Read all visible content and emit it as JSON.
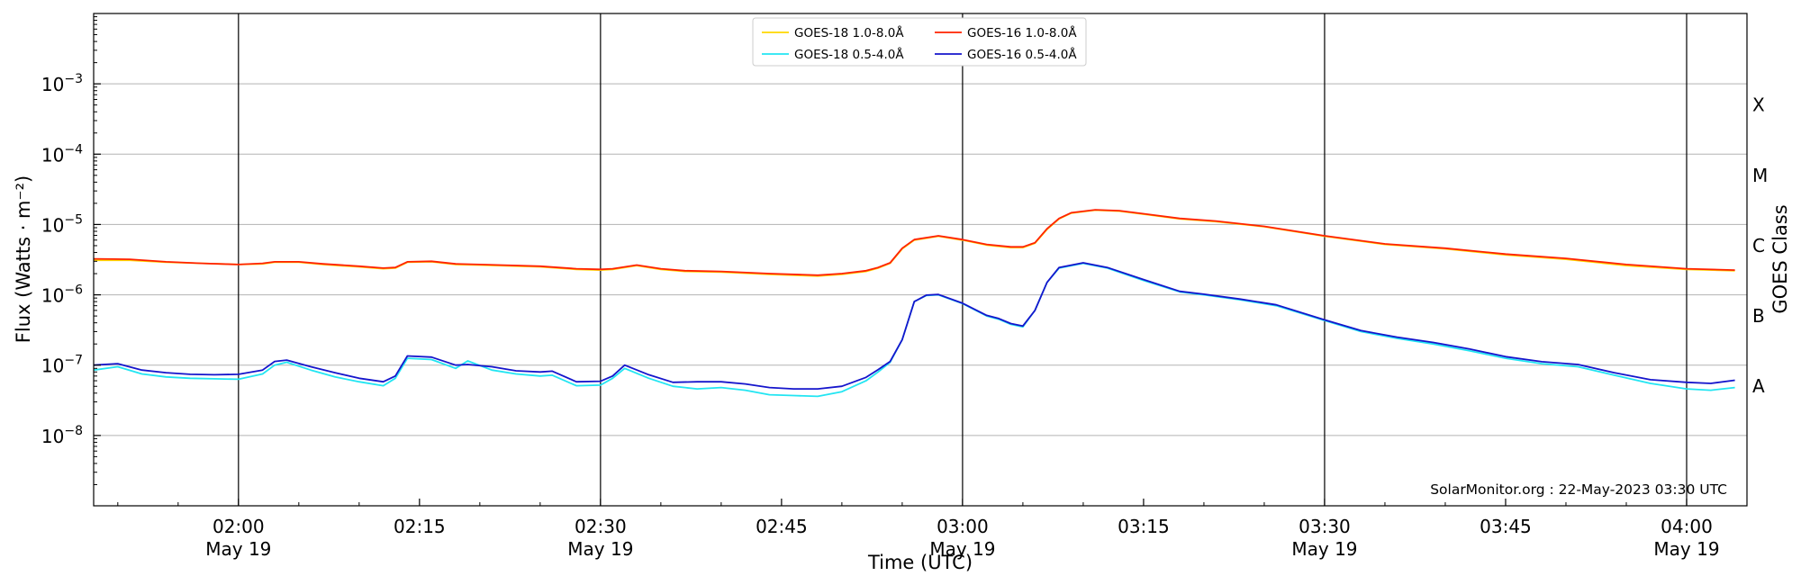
{
  "chart_data": {
    "type": "line",
    "xlabel": "Time (UTC)",
    "ylabel": "Flux (Watts · m⁻²)",
    "right_label": "GOES Class",
    "y_scale": "log",
    "ylim": [
      1e-09,
      0.01
    ],
    "xlim": [
      "2023-05-19 01:48",
      "2023-05-19 04:05"
    ],
    "grid": "horizontal at decades; vertical lines at half-hours",
    "legend_position": "top-center",
    "credit": "SolarMonitor.org : 22-May-2023 03:30 UTC",
    "y_ticks": [
      {
        "value": 1e-08,
        "label": "10",
        "exp": "−8"
      },
      {
        "value": 1e-07,
        "label": "10",
        "exp": "−7"
      },
      {
        "value": 1e-06,
        "label": "10",
        "exp": "−6"
      },
      {
        "value": 1e-05,
        "label": "10",
        "exp": "−5"
      },
      {
        "value": 0.0001,
        "label": "10",
        "exp": "−4"
      },
      {
        "value": 0.001,
        "label": "10",
        "exp": "−3"
      }
    ],
    "x_ticks": [
      {
        "time": "02:00",
        "label": "02:00",
        "date": "May 19"
      },
      {
        "time": "02:15",
        "label": "02:15",
        "date": ""
      },
      {
        "time": "02:30",
        "label": "02:30",
        "date": "May 19"
      },
      {
        "time": "02:45",
        "label": "02:45",
        "date": ""
      },
      {
        "time": "03:00",
        "label": "03:00",
        "date": "May 19"
      },
      {
        "time": "03:15",
        "label": "03:15",
        "date": ""
      },
      {
        "time": "03:30",
        "label": "03:30",
        "date": "May 19"
      },
      {
        "time": "03:45",
        "label": "03:45",
        "date": ""
      },
      {
        "time": "04:00",
        "label": "04:00",
        "date": "May 19"
      }
    ],
    "vlines": [
      "02:00",
      "02:30",
      "03:00",
      "03:30",
      "04:00"
    ],
    "goes_classes": [
      {
        "label": "A",
        "value": 5e-08
      },
      {
        "label": "B",
        "value": 5e-07
      },
      {
        "label": "C",
        "value": 5e-06
      },
      {
        "label": "M",
        "value": 5e-05
      },
      {
        "label": "X",
        "value": 0.0005
      }
    ],
    "series": [
      {
        "name": "GOES-18 1.0-8.0Å",
        "color": "#ffd700",
        "points": [
          [
            "01:48",
            3.1e-06
          ],
          [
            "01:51",
            3.1e-06
          ],
          [
            "01:54",
            2.9e-06
          ],
          [
            "01:57",
            2.8e-06
          ],
          [
            "02:00",
            2.7e-06
          ],
          [
            "02:02",
            2.75e-06
          ],
          [
            "02:03",
            2.9e-06
          ],
          [
            "02:05",
            2.9e-06
          ],
          [
            "02:07",
            2.7e-06
          ],
          [
            "02:10",
            2.5e-06
          ],
          [
            "02:12",
            2.35e-06
          ],
          [
            "02:13",
            2.4e-06
          ],
          [
            "02:14",
            2.9e-06
          ],
          [
            "02:16",
            2.95e-06
          ],
          [
            "02:18",
            2.7e-06
          ],
          [
            "02:20",
            2.65e-06
          ],
          [
            "02:25",
            2.5e-06
          ],
          [
            "02:28",
            2.3e-06
          ],
          [
            "02:30",
            2.25e-06
          ],
          [
            "02:31",
            2.3e-06
          ],
          [
            "02:33",
            2.6e-06
          ],
          [
            "02:35",
            2.3e-06
          ],
          [
            "02:37",
            2.15e-06
          ],
          [
            "02:40",
            2.1e-06
          ],
          [
            "02:44",
            1.95e-06
          ],
          [
            "02:48",
            1.85e-06
          ],
          [
            "02:50",
            1.95e-06
          ],
          [
            "02:52",
            2.15e-06
          ],
          [
            "02:53",
            2.4e-06
          ],
          [
            "02:54",
            2.8e-06
          ],
          [
            "02:55",
            4.5e-06
          ],
          [
            "02:56",
            6e-06
          ],
          [
            "02:58",
            6.8e-06
          ],
          [
            "03:00",
            6e-06
          ],
          [
            "03:02",
            5.1e-06
          ],
          [
            "03:04",
            4.7e-06
          ],
          [
            "03:05",
            4.7e-06
          ],
          [
            "03:06",
            5.4e-06
          ],
          [
            "03:07",
            8.5e-06
          ],
          [
            "03:08",
            1.2e-05
          ],
          [
            "03:09",
            1.45e-05
          ],
          [
            "03:11",
            1.6e-05
          ],
          [
            "03:13",
            1.55e-05
          ],
          [
            "03:15",
            1.4e-05
          ],
          [
            "03:18",
            1.2e-05
          ],
          [
            "03:21",
            1.1e-05
          ],
          [
            "03:25",
            9.3e-06
          ],
          [
            "03:30",
            6.8e-06
          ],
          [
            "03:35",
            5.2e-06
          ],
          [
            "03:40",
            4.5e-06
          ],
          [
            "03:45",
            3.7e-06
          ],
          [
            "03:50",
            3.2e-06
          ],
          [
            "03:55",
            2.6e-06
          ],
          [
            "04:00",
            2.3e-06
          ],
          [
            "04:04",
            2.2e-06
          ]
        ]
      },
      {
        "name": "GOES-18 0.5-4.0Å",
        "color": "#22e5f2",
        "points": [
          [
            "01:48",
            8.5e-08
          ],
          [
            "01:50",
            9.5e-08
          ],
          [
            "01:52",
            7.5e-08
          ],
          [
            "01:54",
            6.8e-08
          ],
          [
            "01:56",
            6.5e-08
          ],
          [
            "01:58",
            6.4e-08
          ],
          [
            "02:00",
            6.3e-08
          ],
          [
            "02:02",
            7.5e-08
          ],
          [
            "02:03",
            1e-07
          ],
          [
            "02:04",
            1.1e-07
          ],
          [
            "02:06",
            8.5e-08
          ],
          [
            "02:08",
            6.8e-08
          ],
          [
            "02:10",
            5.8e-08
          ],
          [
            "02:12",
            5.1e-08
          ],
          [
            "02:13",
            6.5e-08
          ],
          [
            "02:14",
            1.25e-07
          ],
          [
            "02:16",
            1.2e-07
          ],
          [
            "02:18",
            9e-08
          ],
          [
            "02:19",
            1.15e-07
          ],
          [
            "02:21",
            8.5e-08
          ],
          [
            "02:23",
            7.5e-08
          ],
          [
            "02:25",
            7e-08
          ],
          [
            "02:26",
            7.2e-08
          ],
          [
            "02:28",
            5.1e-08
          ],
          [
            "02:30",
            5.2e-08
          ],
          [
            "02:31",
            6.5e-08
          ],
          [
            "02:32",
            9e-08
          ],
          [
            "02:34",
            6.5e-08
          ],
          [
            "02:36",
            5e-08
          ],
          [
            "02:38",
            4.6e-08
          ],
          [
            "02:40",
            4.8e-08
          ],
          [
            "02:42",
            4.4e-08
          ],
          [
            "02:44",
            3.8e-08
          ],
          [
            "02:46",
            3.7e-08
          ],
          [
            "02:48",
            3.6e-08
          ],
          [
            "02:50",
            4.2e-08
          ],
          [
            "02:52",
            6e-08
          ],
          [
            "02:53",
            8e-08
          ],
          [
            "02:54",
            1.1e-07
          ],
          [
            "02:55",
            2.3e-07
          ],
          [
            "02:56",
            8e-07
          ],
          [
            "02:57",
            9.8e-07
          ],
          [
            "02:58",
            1e-06
          ],
          [
            "03:00",
            7.5e-07
          ],
          [
            "03:02",
            5e-07
          ],
          [
            "03:03",
            4.5e-07
          ],
          [
            "03:04",
            3.8e-07
          ],
          [
            "03:05",
            3.5e-07
          ],
          [
            "03:06",
            6e-07
          ],
          [
            "03:07",
            1.5e-06
          ],
          [
            "03:08",
            2.4e-06
          ],
          [
            "03:10",
            2.8e-06
          ],
          [
            "03:12",
            2.4e-06
          ],
          [
            "03:15",
            1.6e-06
          ],
          [
            "03:18",
            1.1e-06
          ],
          [
            "03:20",
            1e-06
          ],
          [
            "03:23",
            8.5e-07
          ],
          [
            "03:26",
            7e-07
          ],
          [
            "03:30",
            4.3e-07
          ],
          [
            "03:33",
            3e-07
          ],
          [
            "03:36",
            2.4e-07
          ],
          [
            "03:39",
            2e-07
          ],
          [
            "03:42",
            1.6e-07
          ],
          [
            "03:45",
            1.25e-07
          ],
          [
            "03:48",
            1.05e-07
          ],
          [
            "03:51",
            9.5e-08
          ],
          [
            "03:54",
            7.2e-08
          ],
          [
            "03:57",
            5.5e-08
          ],
          [
            "04:00",
            4.6e-08
          ],
          [
            "04:02",
            4.4e-08
          ],
          [
            "04:04",
            4.8e-08
          ]
        ]
      },
      {
        "name": "GOES-16 1.0-8.0Å",
        "color": "#ff2200",
        "points": [
          [
            "01:48",
            3.25e-06
          ],
          [
            "01:51",
            3.2e-06
          ],
          [
            "01:54",
            2.95e-06
          ],
          [
            "01:57",
            2.8e-06
          ],
          [
            "02:00",
            2.7e-06
          ],
          [
            "02:02",
            2.8e-06
          ],
          [
            "02:03",
            2.95e-06
          ],
          [
            "02:05",
            2.95e-06
          ],
          [
            "02:07",
            2.75e-06
          ],
          [
            "02:10",
            2.55e-06
          ],
          [
            "02:12",
            2.4e-06
          ],
          [
            "02:13",
            2.45e-06
          ],
          [
            "02:14",
            2.95e-06
          ],
          [
            "02:16",
            3e-06
          ],
          [
            "02:18",
            2.75e-06
          ],
          [
            "02:20",
            2.7e-06
          ],
          [
            "02:25",
            2.55e-06
          ],
          [
            "02:28",
            2.35e-06
          ],
          [
            "02:30",
            2.3e-06
          ],
          [
            "02:31",
            2.35e-06
          ],
          [
            "02:33",
            2.65e-06
          ],
          [
            "02:35",
            2.35e-06
          ],
          [
            "02:37",
            2.2e-06
          ],
          [
            "02:40",
            2.15e-06
          ],
          [
            "02:44",
            2e-06
          ],
          [
            "02:48",
            1.9e-06
          ],
          [
            "02:50",
            2e-06
          ],
          [
            "02:52",
            2.2e-06
          ],
          [
            "02:53",
            2.45e-06
          ],
          [
            "02:54",
            2.85e-06
          ],
          [
            "02:55",
            4.6e-06
          ],
          [
            "02:56",
            6.1e-06
          ],
          [
            "02:58",
            6.9e-06
          ],
          [
            "03:00",
            6.1e-06
          ],
          [
            "03:02",
            5.2e-06
          ],
          [
            "03:04",
            4.8e-06
          ],
          [
            "03:05",
            4.8e-06
          ],
          [
            "03:06",
            5.5e-06
          ],
          [
            "03:07",
            8.7e-06
          ],
          [
            "03:08",
            1.22e-05
          ],
          [
            "03:09",
            1.47e-05
          ],
          [
            "03:11",
            1.62e-05
          ],
          [
            "03:13",
            1.57e-05
          ],
          [
            "03:15",
            1.42e-05
          ],
          [
            "03:18",
            1.22e-05
          ],
          [
            "03:21",
            1.12e-05
          ],
          [
            "03:25",
            9.4e-06
          ],
          [
            "03:30",
            6.9e-06
          ],
          [
            "03:35",
            5.3e-06
          ],
          [
            "03:40",
            4.6e-06
          ],
          [
            "03:45",
            3.8e-06
          ],
          [
            "03:50",
            3.3e-06
          ],
          [
            "03:55",
            2.7e-06
          ],
          [
            "04:00",
            2.35e-06
          ],
          [
            "04:04",
            2.25e-06
          ]
        ]
      },
      {
        "name": "GOES-16 0.5-4.0Å",
        "color": "#1515cc",
        "points": [
          [
            "01:48",
            1e-07
          ],
          [
            "01:50",
            1.05e-07
          ],
          [
            "01:52",
            8.5e-08
          ],
          [
            "01:54",
            7.8e-08
          ],
          [
            "01:56",
            7.4e-08
          ],
          [
            "01:58",
            7.3e-08
          ],
          [
            "02:00",
            7.4e-08
          ],
          [
            "02:02",
            8.5e-08
          ],
          [
            "02:03",
            1.13e-07
          ],
          [
            "02:04",
            1.18e-07
          ],
          [
            "02:06",
            9.5e-08
          ],
          [
            "02:08",
            7.8e-08
          ],
          [
            "02:10",
            6.5e-08
          ],
          [
            "02:12",
            5.8e-08
          ],
          [
            "02:13",
            7e-08
          ],
          [
            "02:14",
            1.35e-07
          ],
          [
            "02:16",
            1.3e-07
          ],
          [
            "02:18",
            1e-07
          ],
          [
            "02:19",
            1.02e-07
          ],
          [
            "02:21",
            9.5e-08
          ],
          [
            "02:23",
            8.3e-08
          ],
          [
            "02:25",
            8e-08
          ],
          [
            "02:26",
            8.2e-08
          ],
          [
            "02:28",
            5.8e-08
          ],
          [
            "02:30",
            5.9e-08
          ],
          [
            "02:31",
            7e-08
          ],
          [
            "02:32",
            1e-07
          ],
          [
            "02:34",
            7.3e-08
          ],
          [
            "02:36",
            5.7e-08
          ],
          [
            "02:38",
            5.8e-08
          ],
          [
            "02:40",
            5.8e-08
          ],
          [
            "02:42",
            5.4e-08
          ],
          [
            "02:44",
            4.8e-08
          ],
          [
            "02:46",
            4.6e-08
          ],
          [
            "02:48",
            4.6e-08
          ],
          [
            "02:50",
            5e-08
          ],
          [
            "02:52",
            6.7e-08
          ],
          [
            "02:53",
            8.6e-08
          ],
          [
            "02:54",
            1.13e-07
          ],
          [
            "02:55",
            2.3e-07
          ],
          [
            "02:56",
            8e-07
          ],
          [
            "02:57",
            9.9e-07
          ],
          [
            "02:58",
            1.01e-06
          ],
          [
            "03:00",
            7.6e-07
          ],
          [
            "03:02",
            5.1e-07
          ],
          [
            "03:03",
            4.6e-07
          ],
          [
            "03:04",
            3.9e-07
          ],
          [
            "03:05",
            3.6e-07
          ],
          [
            "03:06",
            6e-07
          ],
          [
            "03:07",
            1.5e-06
          ],
          [
            "03:08",
            2.45e-06
          ],
          [
            "03:10",
            2.85e-06
          ],
          [
            "03:12",
            2.45e-06
          ],
          [
            "03:15",
            1.65e-06
          ],
          [
            "03:18",
            1.12e-06
          ],
          [
            "03:20",
            1.02e-06
          ],
          [
            "03:23",
            8.7e-07
          ],
          [
            "03:26",
            7.2e-07
          ],
          [
            "03:30",
            4.4e-07
          ],
          [
            "03:33",
            3.1e-07
          ],
          [
            "03:36",
            2.5e-07
          ],
          [
            "03:39",
            2.1e-07
          ],
          [
            "03:42",
            1.7e-07
          ],
          [
            "03:45",
            1.32e-07
          ],
          [
            "03:48",
            1.12e-07
          ],
          [
            "03:51",
            1.02e-07
          ],
          [
            "03:54",
            7.8e-08
          ],
          [
            "03:57",
            6.2e-08
          ],
          [
            "04:00",
            5.7e-08
          ],
          [
            "04:02",
            5.5e-08
          ],
          [
            "04:04",
            6.1e-08
          ]
        ]
      }
    ]
  }
}
